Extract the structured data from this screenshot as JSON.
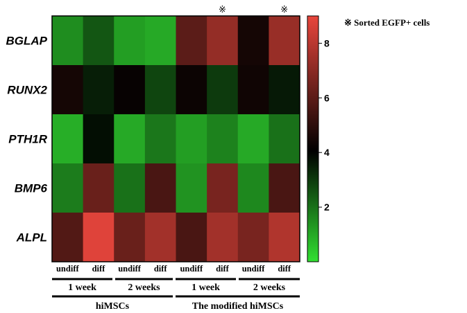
{
  "chart_data": {
    "type": "heatmap",
    "rows": [
      "BGLAP",
      "RUNX2",
      "PTH1R",
      "BMP6",
      "ALPL"
    ],
    "columns": [
      "undiff",
      "diff",
      "undiff",
      "diff",
      "undiff",
      "diff",
      "undiff",
      "diff"
    ],
    "values": [
      [
        1.5,
        2.5,
        1.2,
        1.0,
        6.0,
        7.2,
        4.5,
        7.3
      ],
      [
        4.5,
        3.5,
        4.2,
        2.8,
        4.3,
        3.0,
        4.4,
        3.6
      ],
      [
        0.9,
        3.8,
        1.0,
        1.9,
        1.2,
        1.7,
        1.0,
        2.0
      ],
      [
        1.8,
        6.3,
        2.0,
        5.6,
        1.4,
        6.6,
        1.6,
        5.6
      ],
      [
        5.8,
        8.8,
        6.3,
        7.5,
        5.6,
        7.5,
        6.6,
        7.8
      ]
    ],
    "colorbar": {
      "ticks": [
        "2",
        "4",
        "6",
        "8"
      ],
      "range": [
        0,
        9
      ],
      "low_color": "#32e032",
      "mid_color": "#000000",
      "high_color": "#e8463c"
    },
    "sorted_marks": [
      "※",
      "※"
    ],
    "marked_columns": [
      5,
      7
    ],
    "legend_note": "※ Sorted EGFP+ cells",
    "periods": [
      "1 week",
      "2 weeks",
      "1 week",
      "2 weeks"
    ],
    "groups": [
      "hiMSCs",
      "The modified hiMSCs"
    ]
  }
}
